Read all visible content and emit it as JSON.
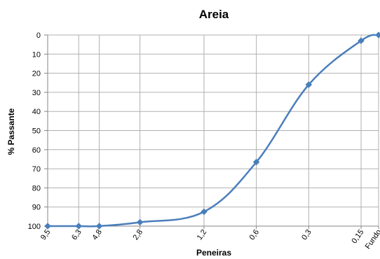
{
  "chart_data": {
    "type": "line",
    "title": "Areia",
    "xlabel": "Peneiras",
    "ylabel": "% Passante",
    "categories": [
      "9,5",
      "6,3",
      "4,8",
      "2,8",
      "1,2",
      "0,6",
      "0,3",
      "0,15",
      "Fundo"
    ],
    "x_scale": "log (sieve opening, mm)",
    "x_values_mm": [
      9.5,
      6.3,
      4.8,
      2.8,
      1.2,
      0.6,
      0.3,
      0.15
    ],
    "series": [
      {
        "values": [
          100,
          100,
          100,
          98,
          92.5,
          66.5,
          26,
          3,
          0
        ]
      }
    ],
    "ylim": [
      0,
      100
    ],
    "y_inverted": true,
    "y_ticks": [
      0,
      10,
      20,
      30,
      40,
      50,
      60,
      70,
      80,
      90,
      100
    ],
    "grid": true,
    "legend": "none",
    "colors": {
      "line": "#4a7ebb",
      "marker": "#4a7ebb",
      "grid": "#b0b0b0",
      "axis": "#868686"
    }
  }
}
